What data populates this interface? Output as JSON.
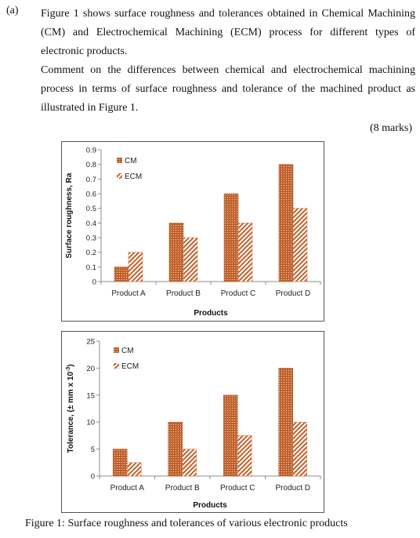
{
  "question": {
    "label": "(a)",
    "paragraph1": "Figure 1 shows surface roughness and tolerances obtained in Chemical Machining (CM) and Electrochemical Machining (ECM) process for different types of electronic products.",
    "paragraph2": "Comment on the differences between chemical and electrochemical machining process in terms of surface roughness and tolerance of the machined product as illustrated in Figure 1.",
    "marks": "(8 marks)"
  },
  "caption": "Figure 1: Surface roughness and tolerances of various electronic products",
  "colors": {
    "cm": "#c0622e",
    "ecm_stripe": "#c0622e",
    "axis": "#8c8c8c"
  },
  "chart_data": [
    {
      "type": "bar",
      "categories": [
        "Product A",
        "Product B",
        "Product C",
        "Product D"
      ],
      "series": [
        {
          "name": "CM",
          "values": [
            0.1,
            0.4,
            0.6,
            0.8
          ]
        },
        {
          "name": "ECM",
          "values": [
            0.2,
            0.3,
            0.4,
            0.5
          ]
        }
      ],
      "yticks": [
        "0",
        "0.1",
        "0.2",
        "0.3",
        "0.4",
        "0.5",
        "0.6",
        "0.7",
        "0.8",
        "0.9"
      ],
      "ylim": [
        0,
        0.9
      ],
      "xlabel": "Products",
      "ylabel": "Surface roughness, Ra",
      "legend": "top-left",
      "grid": false
    },
    {
      "type": "bar",
      "categories": [
        "Product A",
        "Product B",
        "Product C",
        "Product D"
      ],
      "series": [
        {
          "name": "CM",
          "values": [
            5,
            10,
            15,
            20
          ]
        },
        {
          "name": "ECM",
          "values": [
            2.5,
            5,
            7.5,
            10
          ]
        }
      ],
      "yticks": [
        "0",
        "5",
        "10",
        "15",
        "20",
        "25"
      ],
      "ylim": [
        0,
        25
      ],
      "xlabel": "Products",
      "ylabel": "Tolerance, (± mm x 10",
      "ylabel_sup": "-3",
      "ylabel_end": ")",
      "legend": "top-left",
      "grid": false
    }
  ]
}
